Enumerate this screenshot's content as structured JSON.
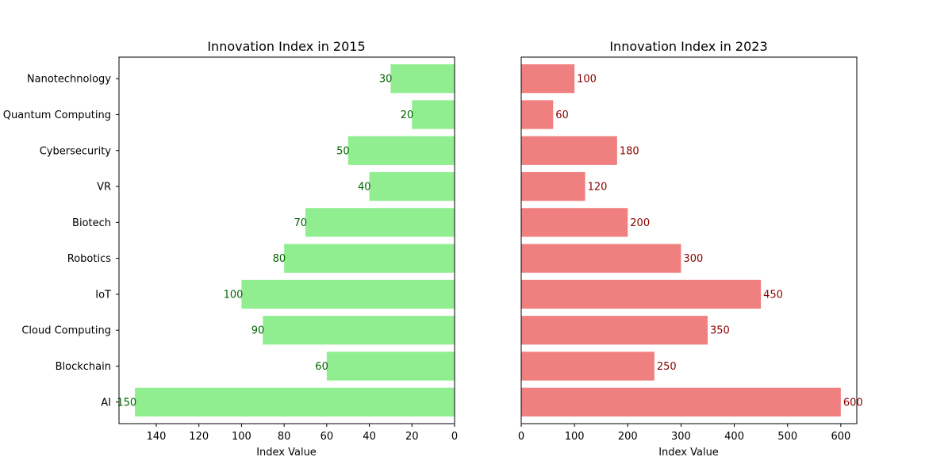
{
  "chart_data": [
    {
      "type": "bar",
      "orientation": "horizontal",
      "inverted_x": true,
      "title": "Innovation Index in 2015",
      "xlabel": "Index Value",
      "ylabel": "",
      "categories": [
        "AI",
        "Blockchain",
        "Cloud Computing",
        "IoT",
        "Robotics",
        "Biotech",
        "VR",
        "Cybersecurity",
        "Quantum Computing",
        "Nanotechnology"
      ],
      "values": [
        150,
        60,
        90,
        100,
        80,
        70,
        40,
        50,
        20,
        30
      ],
      "xlim": [
        157.5,
        0
      ],
      "xticks": [
        140,
        120,
        100,
        80,
        60,
        40,
        20,
        0
      ],
      "bar_color": "#90ee90",
      "label_color": "#006400",
      "grid": false
    },
    {
      "type": "bar",
      "orientation": "horizontal",
      "inverted_x": false,
      "title": "Innovation Index in 2023",
      "xlabel": "Index Value",
      "ylabel": "",
      "categories": [
        "AI",
        "Blockchain",
        "Cloud Computing",
        "IoT",
        "Robotics",
        "Biotech",
        "VR",
        "Cybersecurity",
        "Quantum Computing",
        "Nanotechnology"
      ],
      "values": [
        600,
        250,
        350,
        450,
        300,
        200,
        120,
        180,
        60,
        100
      ],
      "xlim": [
        0,
        630
      ],
      "xticks": [
        0,
        100,
        200,
        300,
        400,
        500,
        600
      ],
      "bar_color": "#f08080",
      "label_color": "#8b0000",
      "grid": false
    }
  ]
}
